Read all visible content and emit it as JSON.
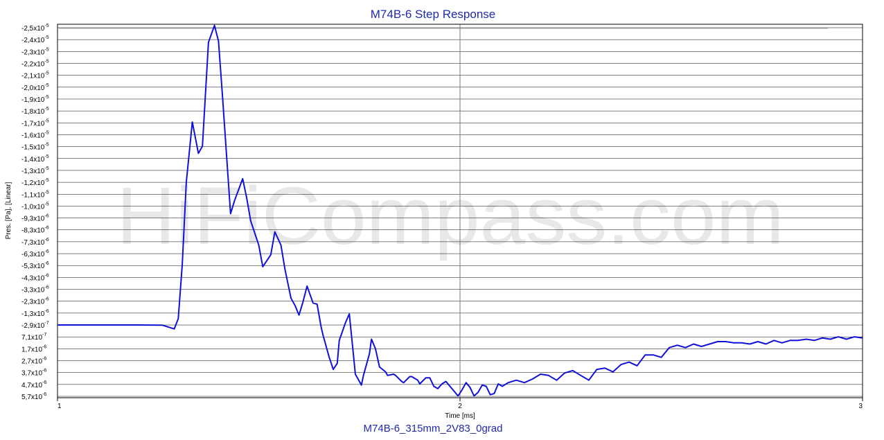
{
  "watermark": "HiFiCompass.com",
  "colors": {
    "series": "#1010d8",
    "title": "#1f2aa8",
    "grid": "#000000",
    "grid_major": "#777777"
  },
  "chart_data": {
    "type": "line",
    "title": "M74B-6 Step Response",
    "subtitle": "M74B-6_315mm_2V83_0grad",
    "xlabel": "Time [ms]",
    "ylabel": "Pres. [Pa], [Linear]",
    "xlim": [
      1,
      3
    ],
    "x_ticks": [
      "1",
      "2",
      "3"
    ],
    "grid": true,
    "y_ticks": [
      {
        "m": "-2,5",
        "e": "-5"
      },
      {
        "m": "-2,4",
        "e": "-5"
      },
      {
        "m": "-2,3",
        "e": "-5"
      },
      {
        "m": "-2,2",
        "e": "-5"
      },
      {
        "m": "-2,1",
        "e": "-5"
      },
      {
        "m": "-2,0",
        "e": "-5"
      },
      {
        "m": "-1,9",
        "e": "-5"
      },
      {
        "m": "-1,8",
        "e": "-5"
      },
      {
        "m": "-1,7",
        "e": "-5"
      },
      {
        "m": "-1,6",
        "e": "-5"
      },
      {
        "m": "-1,5",
        "e": "-5"
      },
      {
        "m": "-1,4",
        "e": "-5"
      },
      {
        "m": "-1,3",
        "e": "-5"
      },
      {
        "m": "-1,2",
        "e": "-5"
      },
      {
        "m": "-1,1",
        "e": "-5"
      },
      {
        "m": "-1,0",
        "e": "-5"
      },
      {
        "m": "-9,3",
        "e": "-6"
      },
      {
        "m": "-8,3",
        "e": "-6"
      },
      {
        "m": "-7,3",
        "e": "-6"
      },
      {
        "m": "-6,3",
        "e": "-6"
      },
      {
        "m": "-5,3",
        "e": "-6"
      },
      {
        "m": "-4,3",
        "e": "-6"
      },
      {
        "m": "-3,3",
        "e": "-6"
      },
      {
        "m": "-2,3",
        "e": "-6"
      },
      {
        "m": "-1,3",
        "e": "-6"
      },
      {
        "m": "-2,9",
        "e": "-7"
      },
      {
        "m": "7,1",
        "e": "-7"
      },
      {
        "m": "1,7",
        "e": "-6"
      },
      {
        "m": "2,7",
        "e": "-6"
      },
      {
        "m": "3,7",
        "e": "-6"
      },
      {
        "m": "4,7",
        "e": "-6"
      },
      {
        "m": "5,7",
        "e": "-6"
      }
    ],
    "y_axis_order": "-2.5e-5 at top, 5.7e-6 at bottom (inverted scale)",
    "series": [
      {
        "x": [
          1.0,
          1.1,
          1.2,
          1.26,
          1.29,
          1.3,
          1.31,
          1.32,
          1.335,
          1.35,
          1.36,
          1.375,
          1.39,
          1.4,
          1.41,
          1.43,
          1.44,
          1.46,
          1.47,
          1.48,
          1.5,
          1.51,
          1.53,
          1.54,
          1.555,
          1.565,
          1.58,
          1.59,
          1.6,
          1.61,
          1.62,
          1.635,
          1.645,
          1.655,
          1.66,
          1.675,
          1.685,
          1.695,
          1.7,
          1.715,
          1.725,
          1.735,
          1.74,
          1.755,
          1.76,
          1.775,
          1.78,
          1.79,
          1.8,
          1.815,
          1.82,
          1.835,
          1.84,
          1.855,
          1.86,
          1.875,
          1.88,
          1.895,
          1.9,
          1.915,
          1.925,
          1.935,
          1.945,
          1.955,
          1.965,
          1.975,
          1.985,
          1.995,
          2.005,
          2.015,
          2.025,
          2.035,
          2.045,
          2.055,
          2.065,
          2.075,
          2.085,
          2.095,
          2.105,
          2.12,
          2.14,
          2.16,
          2.18,
          2.2,
          2.22,
          2.24,
          2.26,
          2.28,
          2.3,
          2.32,
          2.34,
          2.36,
          2.38,
          2.4,
          2.42,
          2.44,
          2.46,
          2.48,
          2.5,
          2.52,
          2.54,
          2.56,
          2.58,
          2.6,
          2.62,
          2.64,
          2.66,
          2.68,
          2.7,
          2.72,
          2.74,
          2.76,
          2.78,
          2.8,
          2.82,
          2.84,
          2.86,
          2.88,
          2.9,
          2.92,
          2.94,
          2.96,
          2.98,
          3.0
        ],
        "y": [
          -2.8e-07,
          -2.8e-07,
          -2.8e-07,
          -2.7e-07,
          5e-08,
          -8e-07,
          -5.3e-06,
          -1.21e-05,
          -1.71e-05,
          -1.45e-05,
          -1.51e-05,
          -2.37e-05,
          -2.51e-05,
          -2.38e-05,
          -1.92e-05,
          -9.5e-06,
          -1.06e-05,
          -1.24e-05,
          -1.08e-05,
          -8.9e-06,
          -6.9e-06,
          -5.1e-06,
          -6.1e-06,
          -8e-06,
          -6.9e-06,
          -4.9e-06,
          -2.5e-06,
          -1.9e-06,
          -1.1e-06,
          -2.2e-06,
          -3.5e-06,
          -2.1e-06,
          -2e-06,
          -9e-08,
          6.1e-07,
          2.4e-06,
          3.4e-06,
          2.9e-06,
          1e-06,
          -4.3e-07,
          -1.2e-06,
          2.1e-06,
          3.8e-06,
          4.7e-06,
          3.9e-06,
          2.1e-06,
          9e-07,
          1.7e-06,
          3.2e-06,
          3.6e-06,
          3.9e-06,
          3.8e-06,
          3.9e-06,
          4.4e-06,
          4.5e-06,
          4e-06,
          4e-06,
          4.3e-06,
          4.6e-06,
          4.1e-06,
          4.1e-06,
          4.8e-06,
          5e-06,
          4.6e-06,
          4.4e-06,
          4.8e-06,
          5.2e-06,
          5.6e-06,
          5.1e-06,
          4.5e-06,
          4.9e-06,
          5.6e-06,
          5.3e-06,
          4.7e-06,
          4.8e-06,
          5.5e-06,
          5.4e-06,
          4.6e-06,
          4.8e-06,
          4.5e-06,
          4.3e-06,
          4.5e-06,
          4.2e-06,
          3.8e-06,
          3.9e-06,
          4.3e-06,
          3.7e-06,
          3.5e-06,
          3.9e-06,
          4.3e-06,
          3.4e-06,
          3.3e-06,
          3.6e-06,
          3e-06,
          2.8e-06,
          3.1e-06,
          2.2e-06,
          2.2e-06,
          2.4e-06,
          1.6e-06,
          1.4e-06,
          1.6e-06,
          1.3e-06,
          1.5e-06,
          1.3e-06,
          1.1e-06,
          1.1e-06,
          1.2e-06,
          1.2e-06,
          1.3e-06,
          1.1e-06,
          1.3e-06,
          1e-06,
          1.2e-06,
          1e-06,
          1e-06,
          9e-07,
          1e-06,
          8e-07,
          9e-07,
          7e-07,
          9e-07,
          7e-07,
          8e-07
        ]
      }
    ]
  }
}
